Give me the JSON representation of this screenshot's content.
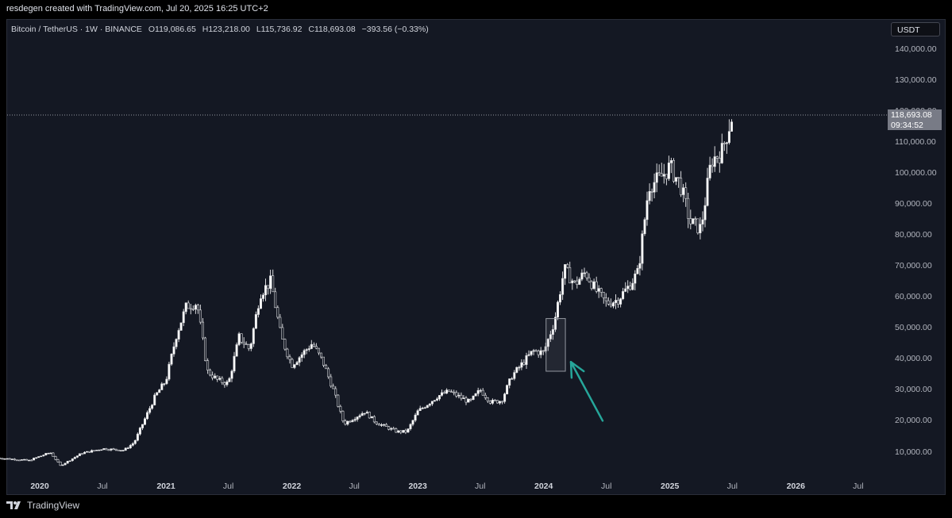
{
  "header": {
    "credit": "resdegen created with TradingView.com, Jul 20, 2025 16:25 UTC+2"
  },
  "legend": {
    "symbol": "Bitcoin / TetherUS · 1W · BINANCE",
    "open_label": "O",
    "open": "119,086.65",
    "high_label": "H",
    "high": "123,218.00",
    "low_label": "L",
    "low": "115,736.92",
    "close_label": "C",
    "close": "118,693.08",
    "change": "−393.56 (−0.33%)"
  },
  "currency_button": "USDT",
  "price_tag": {
    "price": "118,693.08",
    "countdown": "09:34:52"
  },
  "footer": {
    "brand": "TradingView"
  },
  "colors": {
    "background": "#141823",
    "candle": "#ffffff",
    "arrow": "#26a69a",
    "highlight_box": "#9598a1"
  },
  "chart_data": {
    "type": "candlestick",
    "interval": "1W",
    "y_axis": {
      "ticks": [
        10000,
        20000,
        30000,
        40000,
        50000,
        60000,
        70000,
        80000,
        90000,
        100000,
        110000,
        120000,
        130000,
        140000
      ],
      "tick_labels": [
        "10,000.00",
        "20,000.00",
        "30,000.00",
        "40,000.00",
        "50,000.00",
        "60,000.00",
        "70,000.00",
        "80,000.00",
        "90,000.00",
        "100,000.00",
        "110,000.00",
        "120,000.00",
        "130,000.00",
        "140,000.00"
      ]
    },
    "x_axis": {
      "labels": [
        {
          "text": "2020",
          "date": "2020-01",
          "year": true
        },
        {
          "text": "Jul",
          "date": "2020-07",
          "year": false
        },
        {
          "text": "2021",
          "date": "2021-01",
          "year": true
        },
        {
          "text": "Jul",
          "date": "2021-07",
          "year": false
        },
        {
          "text": "2022",
          "date": "2022-01",
          "year": true
        },
        {
          "text": "Jul",
          "date": "2022-07",
          "year": false
        },
        {
          "text": "2023",
          "date": "2023-01",
          "year": true
        },
        {
          "text": "Jul",
          "date": "2023-07",
          "year": false
        },
        {
          "text": "2024",
          "date": "2024-01",
          "year": true
        },
        {
          "text": "Jul",
          "date": "2024-07",
          "year": false
        },
        {
          "text": "2025",
          "date": "2025-01",
          "year": true
        },
        {
          "text": "Jul",
          "date": "2025-07",
          "year": false
        },
        {
          "text": "2026",
          "date": "2026-01",
          "year": true
        },
        {
          "text": "Jul",
          "date": "2026-07",
          "year": false
        }
      ]
    },
    "last_price": 118693.08,
    "price_path": [
      [
        "2019-09",
        8000
      ],
      [
        "2019-12",
        7200
      ],
      [
        "2020-02",
        9800
      ],
      [
        "2020-03",
        5500
      ],
      [
        "2020-05",
        9500
      ],
      [
        "2020-07",
        11000
      ],
      [
        "2020-09",
        10500
      ],
      [
        "2020-10",
        13000
      ],
      [
        "2020-12",
        28000
      ],
      [
        "2021-01",
        33000
      ],
      [
        "2021-02",
        48000
      ],
      [
        "2021-03",
        57000
      ],
      [
        "2021-04",
        58000
      ],
      [
        "2021-05",
        36000
      ],
      [
        "2021-06",
        33000
      ],
      [
        "2021-07",
        32000
      ],
      [
        "2021-08",
        47000
      ],
      [
        "2021-09",
        43000
      ],
      [
        "2021-10",
        61000
      ],
      [
        "2021-11",
        65000
      ],
      [
        "2021-12",
        47000
      ],
      [
        "2022-01",
        38000
      ],
      [
        "2022-03",
        45000
      ],
      [
        "2022-04",
        39000
      ],
      [
        "2022-05",
        30000
      ],
      [
        "2022-06",
        19000
      ],
      [
        "2022-08",
        23000
      ],
      [
        "2022-09",
        19500
      ],
      [
        "2022-11",
        16500
      ],
      [
        "2022-12",
        16500
      ],
      [
        "2023-01",
        23000
      ],
      [
        "2023-03",
        28000
      ],
      [
        "2023-04",
        29500
      ],
      [
        "2023-06",
        26000
      ],
      [
        "2023-07",
        30000
      ],
      [
        "2023-08",
        26000
      ],
      [
        "2023-09",
        26500
      ],
      [
        "2023-10",
        34500
      ],
      [
        "2023-12",
        42500
      ],
      [
        "2024-01",
        42000
      ],
      [
        "2024-02",
        52000
      ],
      [
        "2024-03",
        69000
      ],
      [
        "2024-04",
        64000
      ],
      [
        "2024-05",
        68000
      ],
      [
        "2024-06",
        62000
      ],
      [
        "2024-07",
        58000
      ],
      [
        "2024-08",
        59000
      ],
      [
        "2024-09",
        63000
      ],
      [
        "2024-10",
        68000
      ],
      [
        "2024-11",
        96000
      ],
      [
        "2024-12",
        98000
      ],
      [
        "2025-01",
        102000
      ],
      [
        "2025-02",
        96000
      ],
      [
        "2025-03",
        84000
      ],
      [
        "2025-04",
        82000
      ],
      [
        "2025-05",
        104000
      ],
      [
        "2025-06",
        107000
      ],
      [
        "2025-07",
        118693
      ]
    ],
    "annotations": [
      {
        "type": "rectangle",
        "from": "2024-01-08",
        "to": "2024-03-04",
        "low": 36000,
        "high": 53000
      },
      {
        "type": "arrow",
        "from_date": "2024-06-20",
        "from_price": 20000,
        "to_date": "2024-03-20",
        "to_price": 39000
      }
    ]
  }
}
